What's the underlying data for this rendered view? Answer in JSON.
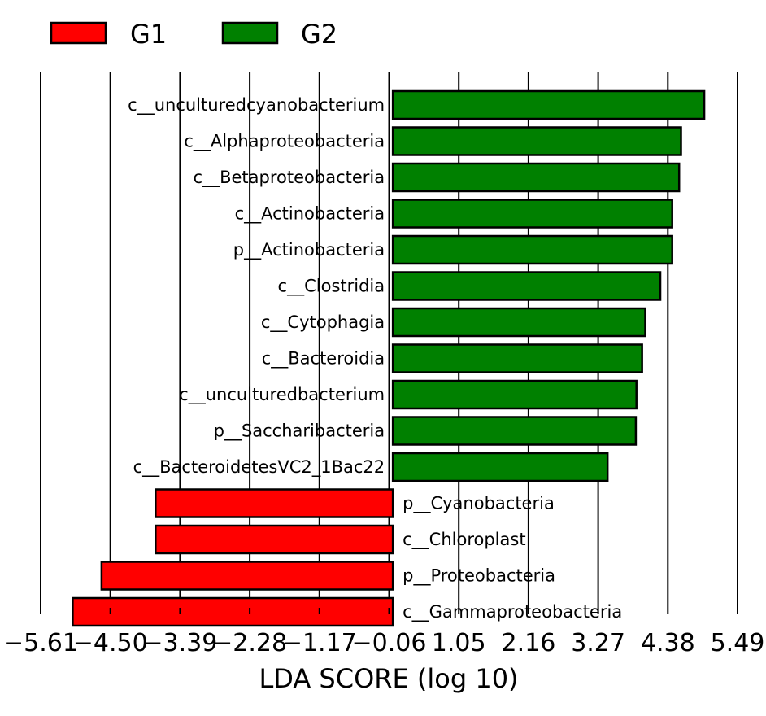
{
  "chart_data": {
    "type": "bar",
    "orientation": "horizontal",
    "xlabel": "LDA SCORE (log 10)",
    "xlim": [
      -5.61,
      5.49
    ],
    "xticks": [
      -5.61,
      -4.5,
      -3.39,
      -2.28,
      -1.17,
      -0.06,
      1.05,
      2.16,
      3.27,
      4.38,
      5.49
    ],
    "xtick_labels": [
      "−5.61",
      "−4.50",
      "−3.39",
      "−2.28",
      "−1.17",
      "−0.06",
      "1.05",
      "2.16",
      "3.27",
      "4.38",
      "5.49"
    ],
    "grid": "vertical lines at ticks",
    "legend_placement": "top-left",
    "groups": [
      {
        "name": "G1",
        "color": "#ff0000"
      },
      {
        "name": "G2",
        "color": "#008000"
      }
    ],
    "bars": [
      {
        "label": "c__unculturedcyanobacterium",
        "value": 4.96,
        "group": "G2"
      },
      {
        "label": "c__Alphaproteobacteria",
        "value": 4.59,
        "group": "G2"
      },
      {
        "label": "c__Betaproteobacteria",
        "value": 4.56,
        "group": "G2"
      },
      {
        "label": "c__Actinobacteria",
        "value": 4.45,
        "group": "G2"
      },
      {
        "label": "p__Actinobacteria",
        "value": 4.45,
        "group": "G2"
      },
      {
        "label": "c__Clostridia",
        "value": 4.26,
        "group": "G2"
      },
      {
        "label": "c__Cytophagia",
        "value": 4.02,
        "group": "G2"
      },
      {
        "label": "c__Bacteroidia",
        "value": 3.97,
        "group": "G2"
      },
      {
        "label": "c__unculturedbacterium",
        "value": 3.88,
        "group": "G2"
      },
      {
        "label": "p__Saccharibacteria",
        "value": 3.87,
        "group": "G2"
      },
      {
        "label": "c__BacteroidetesVC2_1Bac22",
        "value": 3.42,
        "group": "G2"
      },
      {
        "label": "p__Cyanobacteria",
        "value": -3.78,
        "group": "G1"
      },
      {
        "label": "c__Chloroplast",
        "value": -3.78,
        "group": "G1"
      },
      {
        "label": "p__Proteobacteria",
        "value": -4.64,
        "group": "G1"
      },
      {
        "label": "c__Gammaproteobacteria",
        "value": -5.1,
        "group": "G1"
      }
    ]
  }
}
